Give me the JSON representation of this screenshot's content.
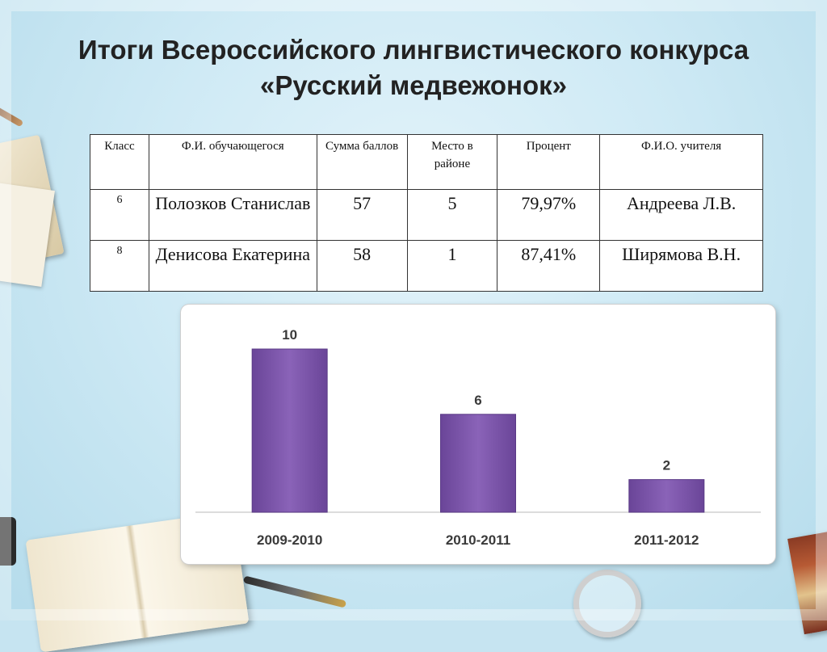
{
  "slide": {
    "title_line1": "Итоги Всероссийского лингвистического конкурса",
    "title_line2": "«Русский медвежонок»"
  },
  "table": {
    "headers": [
      "Класс",
      "Ф.И. обучающегося",
      "Сумма баллов",
      "Место в районе",
      "Процент",
      "Ф.И.О. учителя"
    ],
    "rows": [
      {
        "class": "6",
        "student": "Полозков Станислав",
        "score": "57",
        "place": "5",
        "percent": "79,97%",
        "teacher": "Андреева Л.В."
      },
      {
        "class": "8",
        "student": "Денисова Екатерина",
        "score": "58",
        "place": "1",
        "percent": "87,41%",
        "teacher": "Ширямова В.Н."
      }
    ]
  },
  "chart_data": {
    "type": "bar",
    "categories": [
      "2009-2010",
      "2010-2011",
      "2011-2012"
    ],
    "values": [
      10,
      6,
      2
    ],
    "data_labels": [
      "10",
      "6",
      "2"
    ],
    "title": "",
    "xlabel": "",
    "ylabel": "",
    "ylim": [
      0,
      10
    ],
    "grid": false,
    "legend": "none",
    "bar_color": "#7b55a8"
  }
}
